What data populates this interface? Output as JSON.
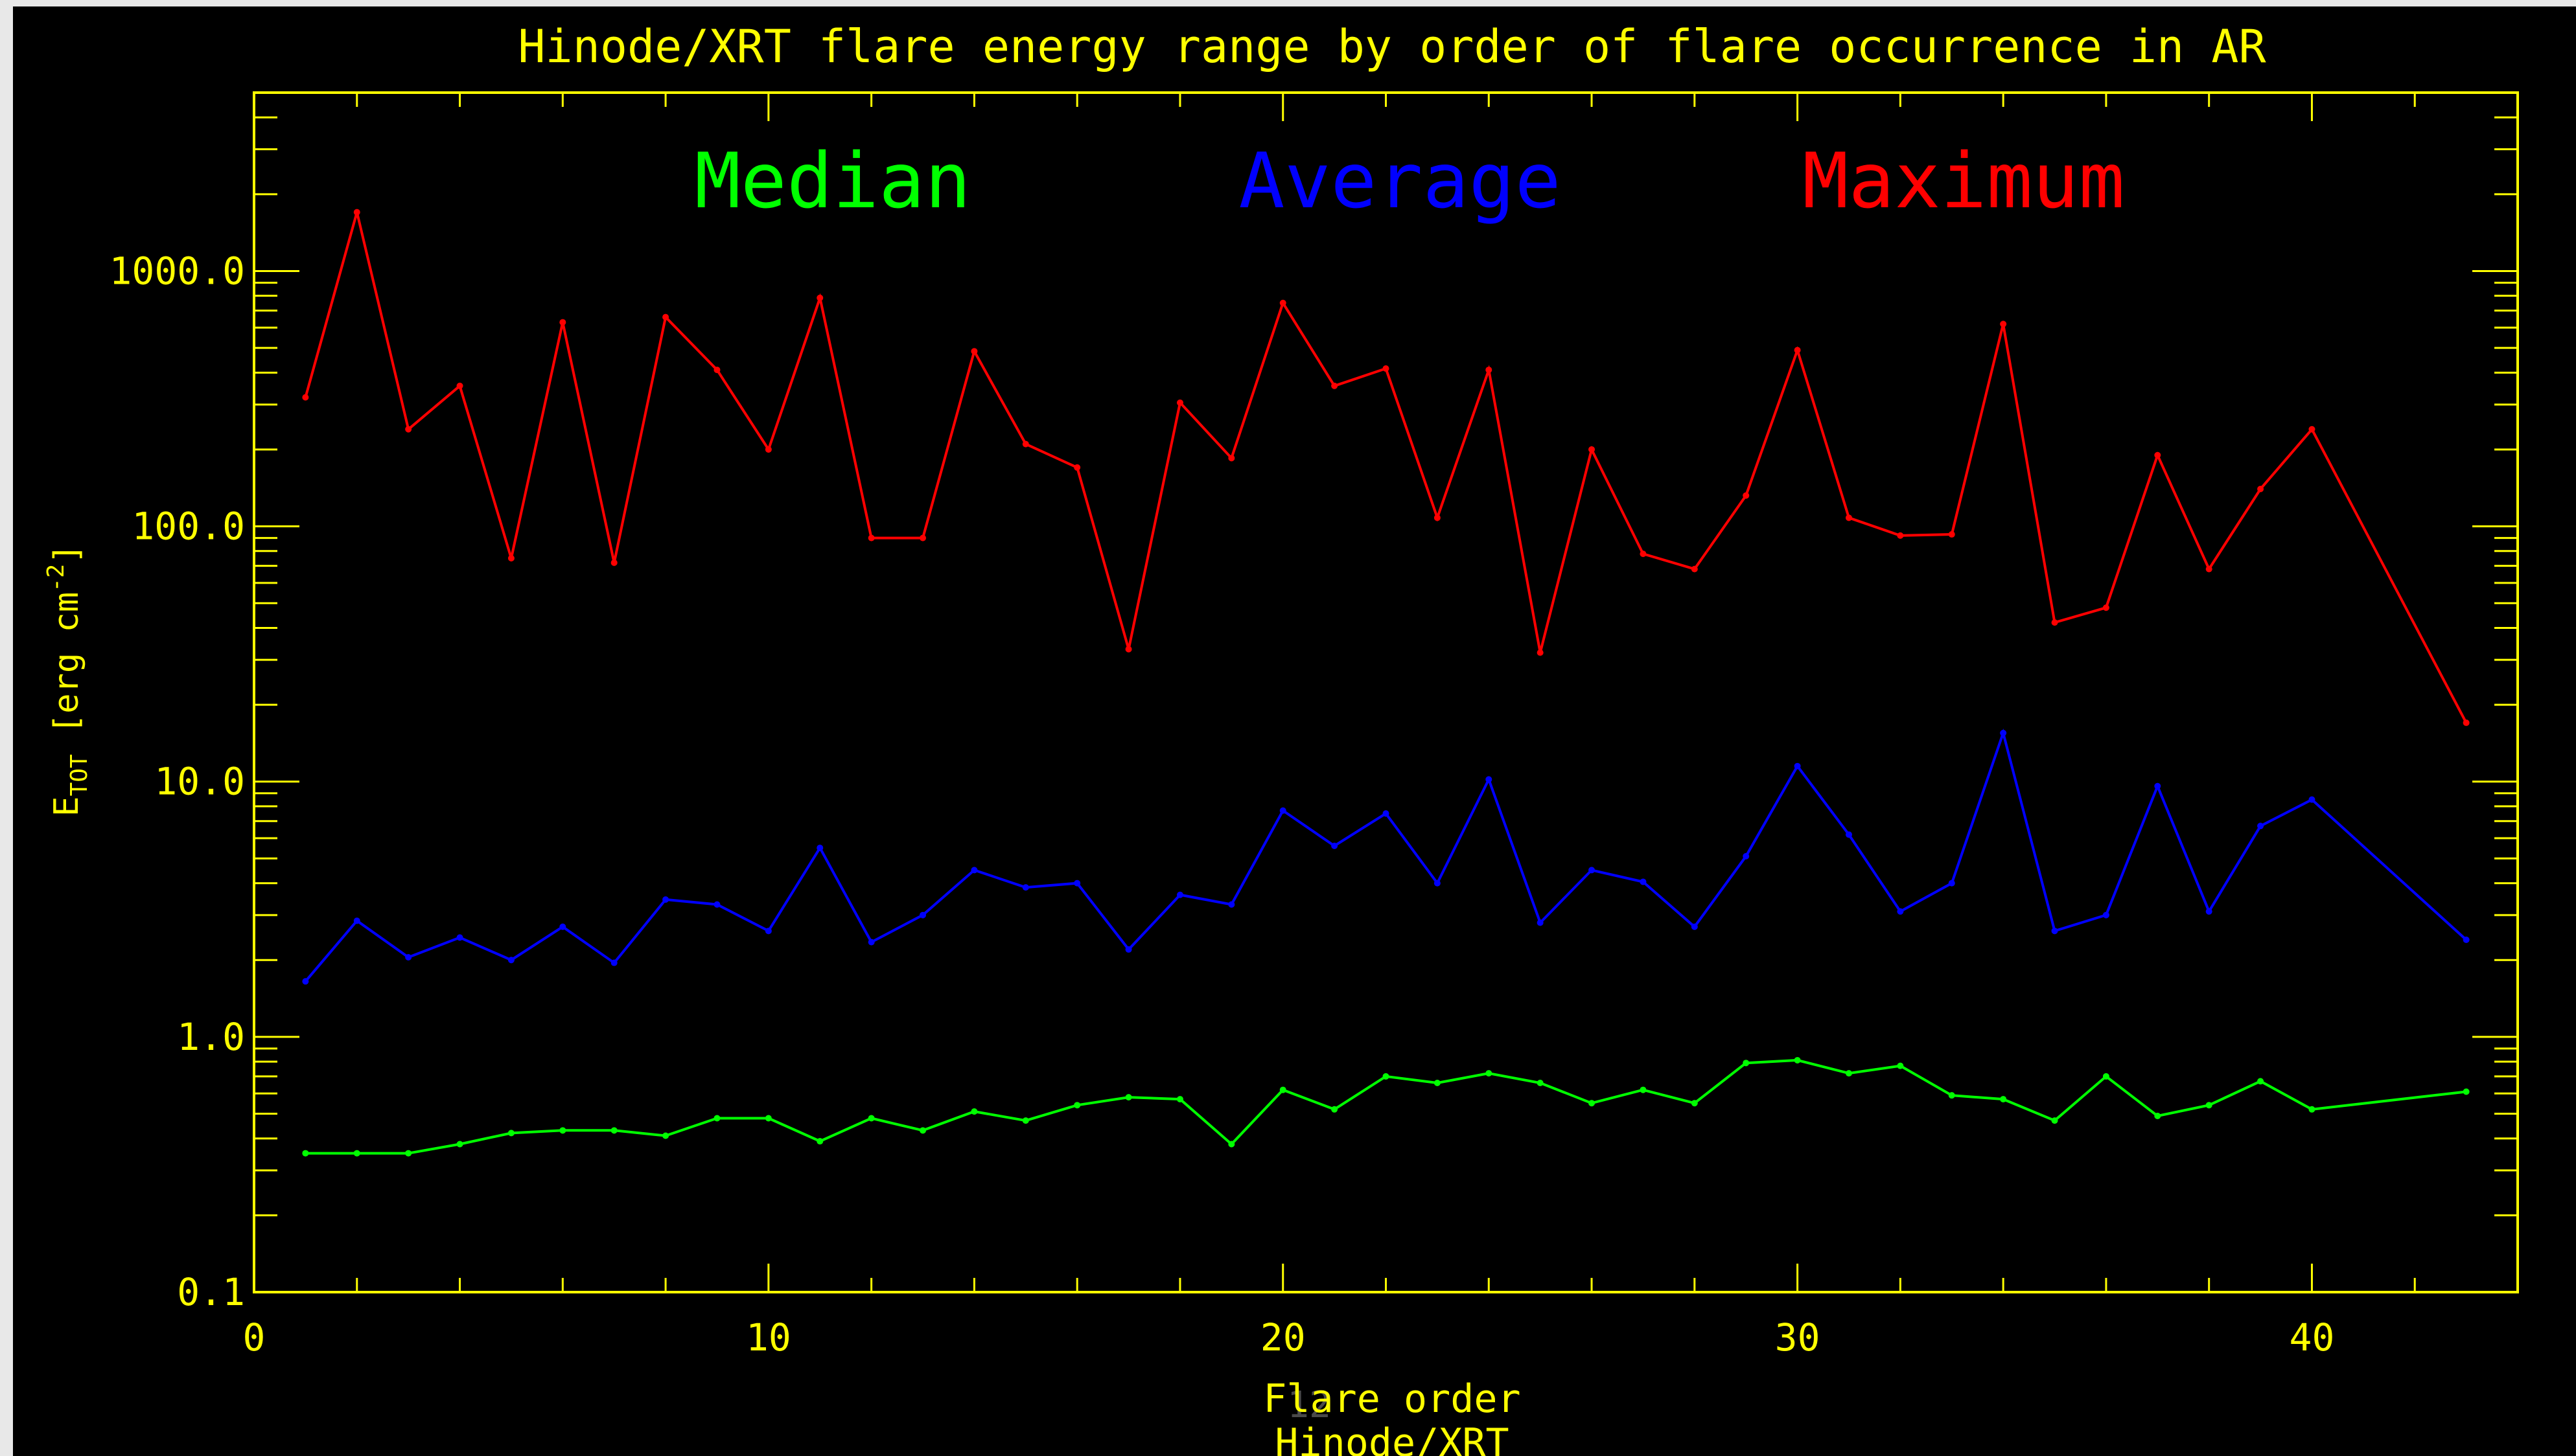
{
  "chart_data": {
    "type": "line",
    "title": "Hinode/XRT flare energy range by order of flare occurrence in AR",
    "xlabel": "Flare order",
    "xlabel_sub": "Hinode/XRT",
    "ylabel_main": "E",
    "ylabel_sub": "TOT",
    "ylabel_unit_open": " [erg cm",
    "ylabel_sup": "-2",
    "ylabel_unit_close": "]",
    "y_scale": "log",
    "xlim": [
      0,
      44
    ],
    "ylim": [
      0.1,
      5000
    ],
    "x_ticks": [
      0,
      10,
      20,
      30,
      40
    ],
    "x_tick_labels": [
      "0",
      "10",
      "20",
      "30",
      "40"
    ],
    "y_ticks": [
      0.1,
      1,
      10,
      100,
      1000
    ],
    "y_tick_labels": [
      "0.1",
      "1.0",
      "10.0",
      "100.0",
      "1000.0"
    ],
    "grid": false,
    "legend": "top",
    "colors": {
      "axis": "#ffff00",
      "background": "#000000",
      "Median": "#00ff00",
      "Average": "#0000ff",
      "Maximum": "#ff0000"
    },
    "x": [
      1,
      2,
      3,
      4,
      5,
      6,
      7,
      8,
      9,
      10,
      11,
      12,
      13,
      14,
      15,
      16,
      17,
      18,
      19,
      20,
      21,
      22,
      23,
      24,
      25,
      26,
      27,
      28,
      29,
      30,
      31,
      32,
      33,
      34,
      35,
      36,
      37,
      38,
      39,
      40,
      43
    ],
    "series": [
      {
        "name": "Median",
        "values": [
          0.35,
          0.35,
          0.35,
          0.38,
          0.42,
          0.43,
          0.43,
          0.41,
          0.48,
          0.48,
          0.39,
          0.48,
          0.43,
          0.51,
          0.47,
          0.54,
          0.58,
          0.57,
          0.38,
          0.62,
          0.52,
          0.7,
          0.66,
          0.72,
          0.66,
          0.55,
          0.62,
          0.55,
          0.79,
          0.81,
          0.72,
          0.77,
          0.59,
          0.57,
          0.47,
          0.7,
          0.49,
          0.54,
          0.67,
          0.52,
          0.61
        ]
      },
      {
        "name": "Average",
        "values": [
          1.65,
          2.85,
          2.05,
          2.45,
          2.0,
          2.7,
          1.95,
          3.45,
          3.3,
          2.6,
          5.5,
          2.35,
          3.0,
          4.5,
          3.85,
          4.0,
          2.2,
          3.6,
          3.3,
          7.7,
          5.6,
          7.5,
          4.0,
          10.2,
          2.8,
          4.5,
          4.05,
          2.7,
          5.1,
          11.5,
          6.2,
          3.1,
          4.0,
          15.5,
          2.6,
          3.0,
          9.6,
          3.1,
          6.7,
          8.5,
          2.4
        ]
      },
      {
        "name": "Maximum",
        "values": [
          320,
          1700,
          240,
          355,
          75,
          630,
          72,
          660,
          410,
          200,
          785,
          90,
          90,
          485,
          210,
          170,
          33,
          305,
          185,
          750,
          355,
          415,
          108,
          410,
          32,
          200,
          78,
          68,
          132,
          490,
          108,
          92,
          93,
          620,
          42,
          48,
          190,
          68,
          140,
          240,
          17
        ]
      }
    ]
  },
  "watermark": "12"
}
